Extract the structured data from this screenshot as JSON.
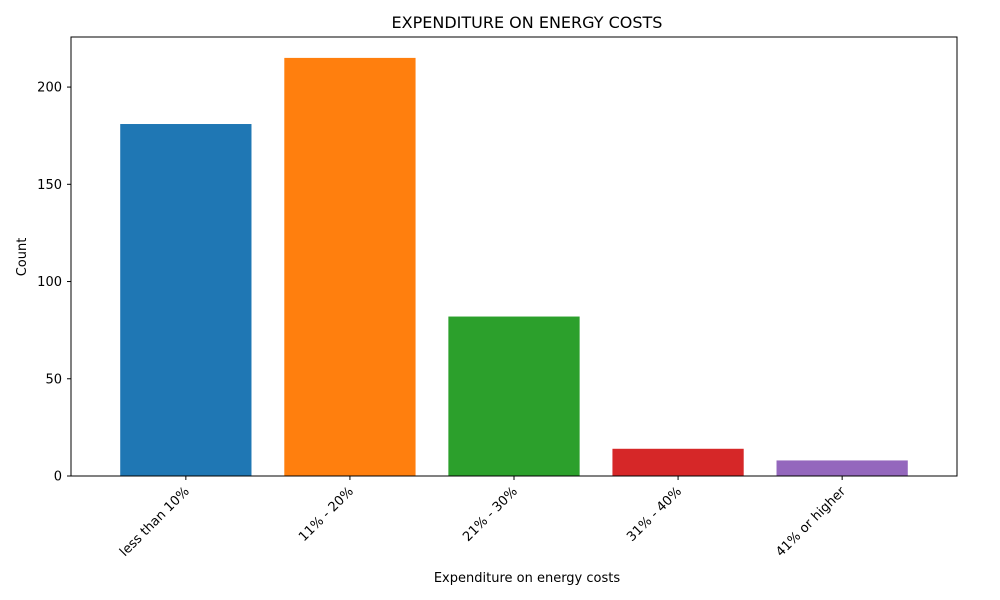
{
  "chart_data": {
    "type": "bar",
    "title": "EXPENDITURE ON ENERGY COSTS",
    "xlabel": "Expenditure on energy costs",
    "ylabel": "Count",
    "categories": [
      "less than 10%",
      "11% - 20%",
      "21% - 30%",
      "31% - 40%",
      "41% or higher"
    ],
    "values": [
      181,
      215,
      82,
      14,
      8
    ],
    "colors": [
      "#1f77b4",
      "#ff7f0e",
      "#2ca02c",
      "#d62728",
      "#9467bd"
    ],
    "ylim": [
      0,
      225.75
    ],
    "yticks": [
      0,
      50,
      100,
      150,
      200
    ],
    "grid": false,
    "legend": "none"
  }
}
